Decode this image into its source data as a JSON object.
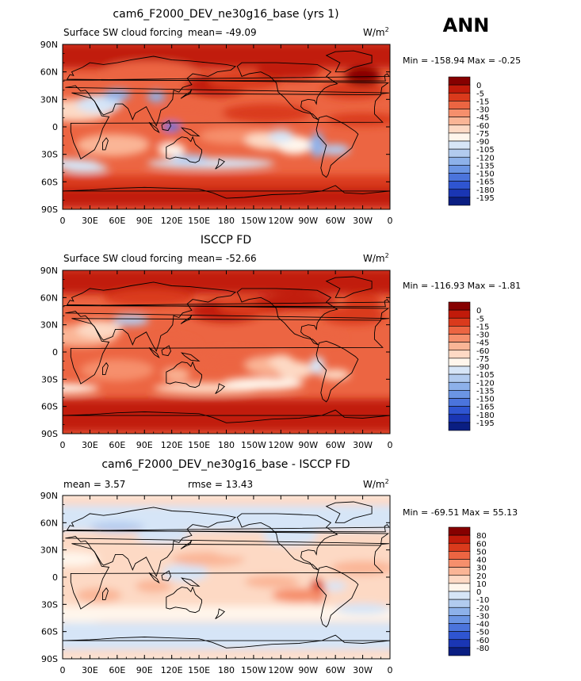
{
  "season": "ANN",
  "colors": {
    "forcing": [
      "#860000",
      "#c11a0a",
      "#da3a1c",
      "#ec6542",
      "#f68f6c",
      "#fab596",
      "#fdd9c4",
      "#fff6ec",
      "#d6e5f7",
      "#b2cbef",
      "#8db1ea",
      "#6b95e4",
      "#4b74dc",
      "#2f55d1",
      "#1a36b4",
      "#0a1e82"
    ],
    "diff": [
      "#860000",
      "#c11a0a",
      "#da3a1c",
      "#ec6542",
      "#f68f6c",
      "#fab596",
      "#fdd9c4",
      "#fff6ec",
      "#d6e5f7",
      "#b2cbef",
      "#8db1ea",
      "#6b95e4",
      "#4b74dc",
      "#2f55d1",
      "#1a36b4",
      "#0a1e82"
    ]
  },
  "chart_data": [
    {
      "type": "heatmap",
      "title": "cam6_F2000_DEV_ne30g16_base (yrs 1)",
      "left_label": "Surface SW cloud forcing",
      "mean_text": "mean= -49.09",
      "units": "W/m²",
      "min_max_text": "Min = -158.94  Max =  -0.25",
      "min": -158.94,
      "max": -0.25,
      "mean": -49.09,
      "x_ticks": [
        "0",
        "30E",
        "60E",
        "90E",
        "120E",
        "150E",
        "180",
        "150W",
        "120W",
        "90W",
        "60W",
        "30W",
        "0"
      ],
      "y_ticks": [
        "90N",
        "60N",
        "30N",
        "0",
        "30S",
        "60S",
        "90S"
      ],
      "colorbar_labels": [
        "0",
        "-5",
        "-15",
        "-30",
        "-45",
        "-60",
        "-75",
        "-90",
        "-105",
        "-120",
        "-135",
        "-150",
        "-165",
        "-180",
        "-195"
      ],
      "colorbar_levels": [
        0,
        -5,
        -15,
        -30,
        -45,
        -60,
        -75,
        -90,
        -105,
        -120,
        -135,
        -150,
        -165,
        -180,
        -195
      ]
    },
    {
      "type": "heatmap",
      "title": "ISCCP FD",
      "left_label": "Surface SW cloud forcing",
      "mean_text": "mean= -52.66",
      "units": "W/m²",
      "min_max_text": "Min = -116.93  Max =  -1.81",
      "min": -116.93,
      "max": -1.81,
      "mean": -52.66,
      "x_ticks": [
        "0",
        "30E",
        "60E",
        "90E",
        "120E",
        "150E",
        "180",
        "150W",
        "120W",
        "90W",
        "60W",
        "30W",
        "0"
      ],
      "y_ticks": [
        "90N",
        "60N",
        "30N",
        "0",
        "30S",
        "60S",
        "90S"
      ],
      "colorbar_labels": [
        "0",
        "-5",
        "-15",
        "-30",
        "-45",
        "-60",
        "-75",
        "-90",
        "-105",
        "-120",
        "-135",
        "-150",
        "-165",
        "-180",
        "-195"
      ],
      "colorbar_levels": [
        0,
        -5,
        -15,
        -30,
        -45,
        -60,
        -75,
        -90,
        -105,
        -120,
        -135,
        -150,
        -165,
        -180,
        -195
      ]
    },
    {
      "type": "heatmap",
      "title": "cam6_F2000_DEV_ne30g16_base - ISCCP FD",
      "mean_text": "mean =    3.57",
      "rmse_text": "rmse =   13.43",
      "units": "W/m²",
      "min_max_text": "Min = -69.51  Max =  55.13",
      "min": -69.51,
      "max": 55.13,
      "mean": 3.57,
      "rmse": 13.43,
      "x_ticks": [
        "0",
        "30E",
        "60E",
        "90E",
        "120E",
        "150E",
        "180",
        "150W",
        "120W",
        "90W",
        "60W",
        "30W",
        "0"
      ],
      "y_ticks": [
        "90N",
        "60N",
        "30N",
        "0",
        "30S",
        "60S",
        "90S"
      ],
      "colorbar_labels": [
        "80",
        "60",
        "50",
        "40",
        "30",
        "20",
        "10",
        "0",
        "-10",
        "-20",
        "-30",
        "-40",
        "-50",
        "-60",
        "-80"
      ],
      "colorbar_levels": [
        80,
        60,
        50,
        40,
        30,
        20,
        10,
        0,
        -10,
        -20,
        -30,
        -40,
        -50,
        -60,
        -80
      ]
    }
  ]
}
